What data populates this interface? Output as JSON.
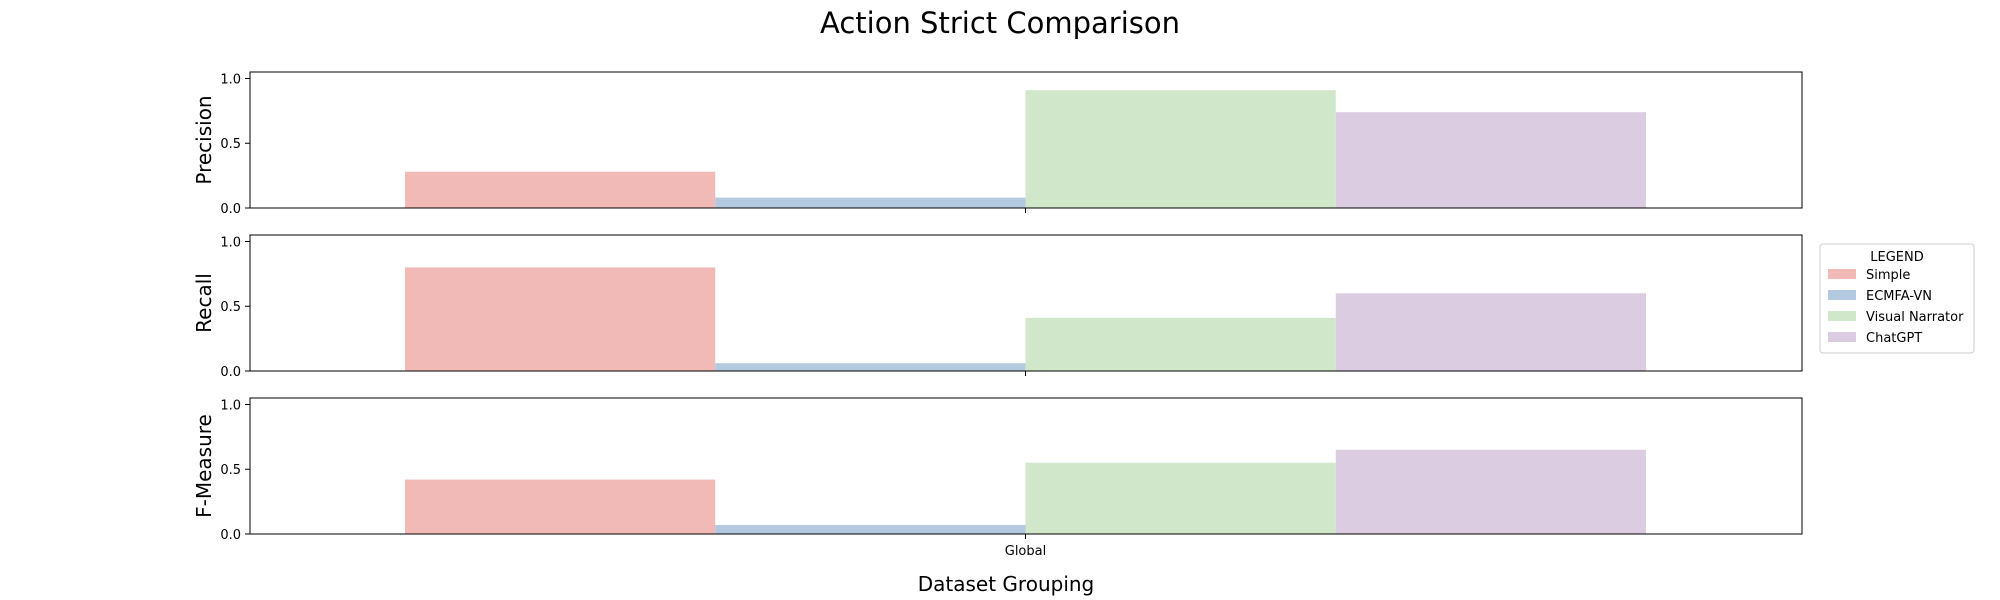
{
  "chart_data": {
    "type": "bar",
    "title": "Action Strict Comparison",
    "xlabel": "Dataset Grouping",
    "categories": [
      "Global"
    ],
    "ylim": [
      0,
      1.05
    ],
    "yticks": [
      "0.0",
      "0.5",
      "1.0"
    ],
    "legend": {
      "title": "LEGEND",
      "position": "right"
    },
    "series": [
      {
        "name": "Simple",
        "color": "#f1bab7"
      },
      {
        "name": "ECMFA-VN",
        "color": "#b2c9e0"
      },
      {
        "name": "Visual Narrator",
        "color": "#d1e7ca"
      },
      {
        "name": "ChatGPT",
        "color": "#dbcce2"
      }
    ],
    "panels": [
      {
        "ylabel": "Precision",
        "values": [
          0.28,
          0.08,
          0.91,
          0.74
        ]
      },
      {
        "ylabel": "Recall",
        "values": [
          0.8,
          0.06,
          0.41,
          0.6
        ]
      },
      {
        "ylabel": "F-Measure",
        "values": [
          0.42,
          0.07,
          0.55,
          0.65
        ]
      }
    ]
  }
}
